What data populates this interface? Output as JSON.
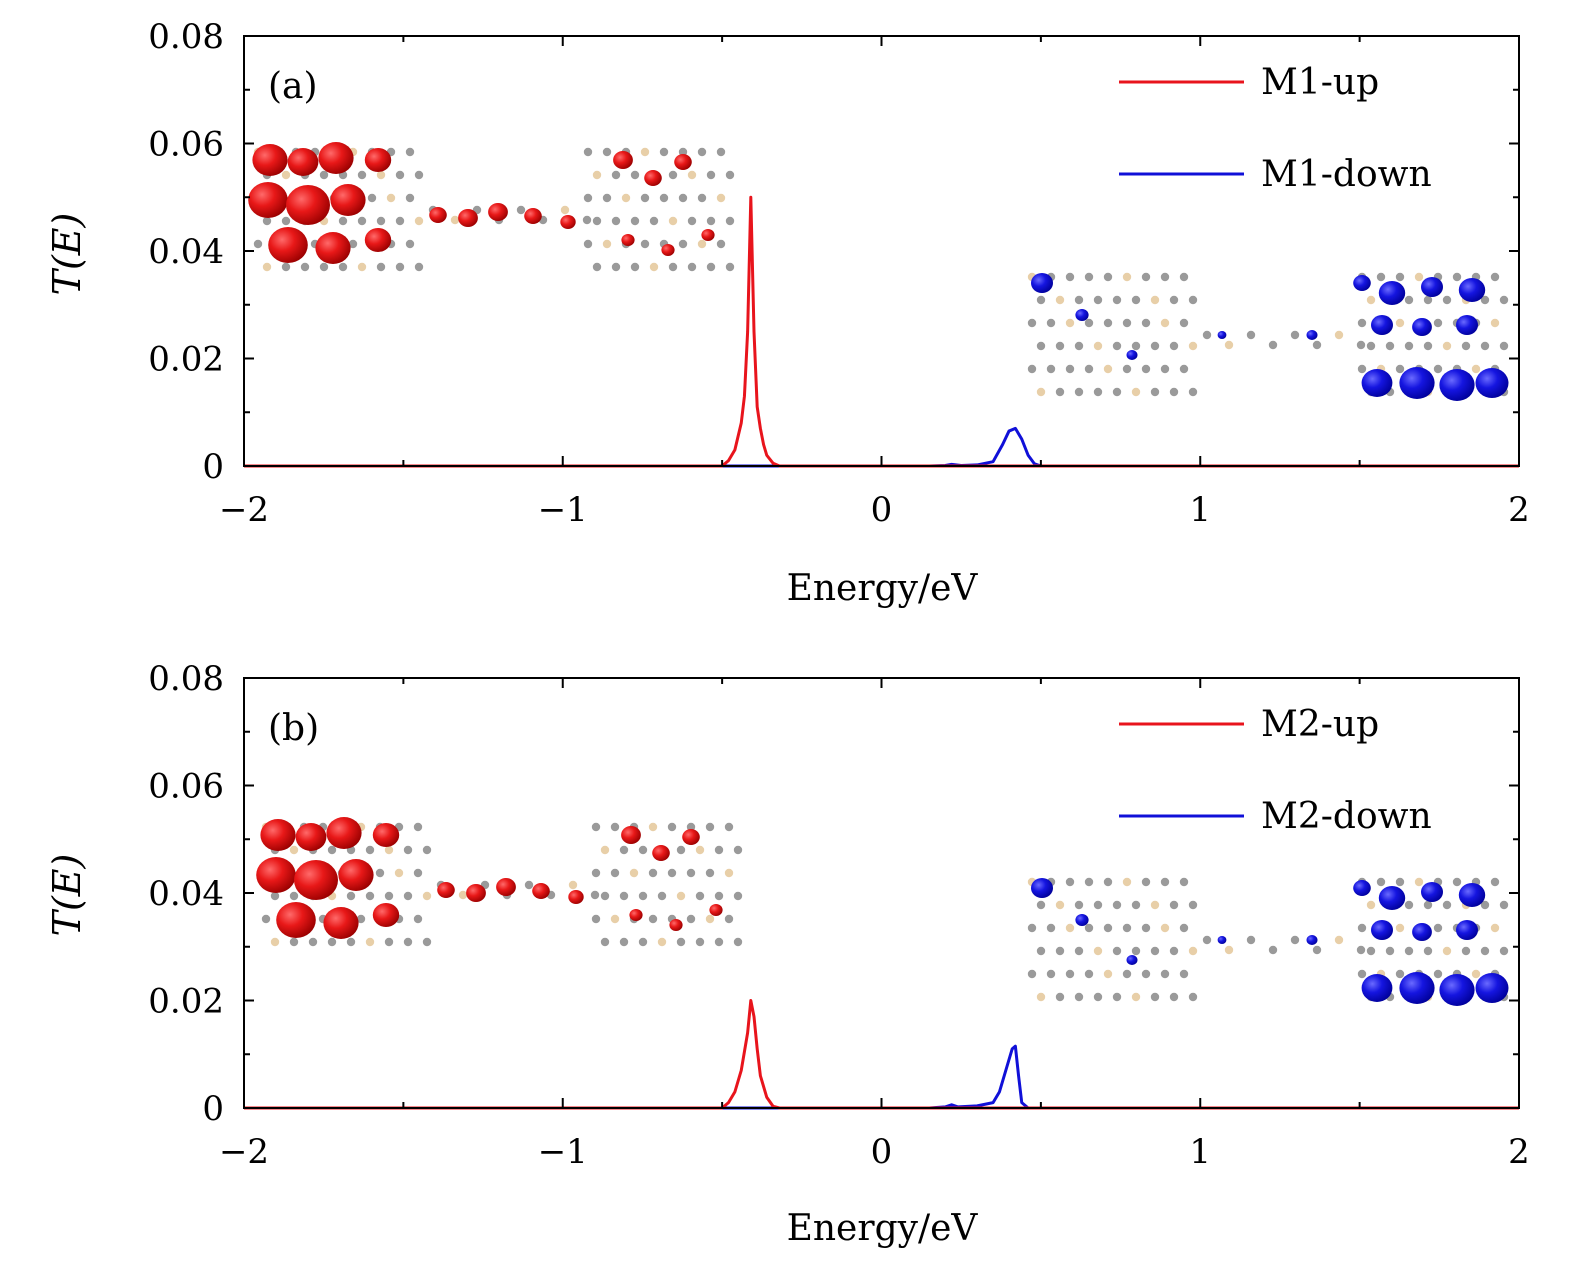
{
  "chart_data": [
    {
      "type": "line",
      "panel_label": "(a)",
      "xlabel": "Energy/eV",
      "ylabel": "T(E)",
      "xlim": [
        -2,
        2
      ],
      "ylim": [
        0,
        0.08
      ],
      "xticks": [
        "−2",
        "−1",
        "0",
        "1",
        "2"
      ],
      "yticks": [
        "0",
        "0.02",
        "0.04",
        "0.06",
        "0.08"
      ],
      "legend_position": "top-right",
      "grid": false,
      "insets": [
        "molecular isosurface (red, spin-up)",
        "molecular isosurface (blue, spin-down)"
      ],
      "series": [
        {
          "name": "M1-up",
          "color": "#e8141c",
          "x": [
            -2.0,
            -0.6,
            -0.5,
            -0.48,
            -0.46,
            -0.44,
            -0.43,
            -0.42,
            -0.41,
            -0.4,
            -0.39,
            -0.38,
            -0.37,
            -0.36,
            -0.34,
            -0.32,
            -0.3,
            0.0,
            2.0
          ],
          "y": [
            0.0,
            0.0,
            0.0,
            0.001,
            0.003,
            0.008,
            0.013,
            0.025,
            0.05,
            0.025,
            0.011,
            0.007,
            0.004,
            0.002,
            0.0005,
            0.0,
            0.0,
            0.0,
            0.0
          ]
        },
        {
          "name": "M1-down",
          "color": "#1010d8",
          "x": [
            -2.0,
            0.0,
            0.15,
            0.2,
            0.22,
            0.25,
            0.3,
            0.35,
            0.38,
            0.4,
            0.42,
            0.44,
            0.46,
            0.48,
            0.5,
            1.0,
            2.0
          ],
          "y": [
            0.0,
            0.0,
            0.0,
            0.0001,
            0.0003,
            0.0001,
            0.0002,
            0.0008,
            0.004,
            0.0065,
            0.007,
            0.005,
            0.002,
            0.0004,
            0.0,
            0.0,
            0.0
          ]
        }
      ]
    },
    {
      "type": "line",
      "panel_label": "(b)",
      "xlabel": "Energy/eV",
      "ylabel": "T(E)",
      "xlim": [
        -2,
        2
      ],
      "ylim": [
        0,
        0.08
      ],
      "xticks": [
        "−2",
        "−1",
        "0",
        "1",
        "2"
      ],
      "yticks": [
        "0",
        "0.02",
        "0.04",
        "0.06",
        "0.08"
      ],
      "legend_position": "top-right",
      "grid": false,
      "insets": [
        "molecular isosurface (red, spin-up)",
        "molecular isosurface (blue, spin-down)"
      ],
      "series": [
        {
          "name": "M2-up",
          "color": "#e8141c",
          "x": [
            -2.0,
            -0.6,
            -0.5,
            -0.48,
            -0.46,
            -0.44,
            -0.42,
            -0.41,
            -0.4,
            -0.39,
            -0.38,
            -0.36,
            -0.34,
            -0.32,
            0.0,
            2.0
          ],
          "y": [
            0.0,
            0.0,
            0.0,
            0.001,
            0.003,
            0.007,
            0.014,
            0.02,
            0.017,
            0.011,
            0.006,
            0.002,
            0.0003,
            0.0,
            0.0,
            0.0
          ]
        },
        {
          "name": "M2-down",
          "color": "#1010d8",
          "x": [
            -2.0,
            0.0,
            0.15,
            0.2,
            0.22,
            0.24,
            0.3,
            0.35,
            0.37,
            0.39,
            0.41,
            0.42,
            0.43,
            0.44,
            0.46,
            1.0,
            2.0
          ],
          "y": [
            0.0,
            0.0,
            0.0,
            0.0002,
            0.0006,
            0.0002,
            0.0004,
            0.001,
            0.003,
            0.007,
            0.011,
            0.0115,
            0.006,
            0.001,
            0.0,
            0.0,
            0.0
          ]
        }
      ]
    }
  ]
}
